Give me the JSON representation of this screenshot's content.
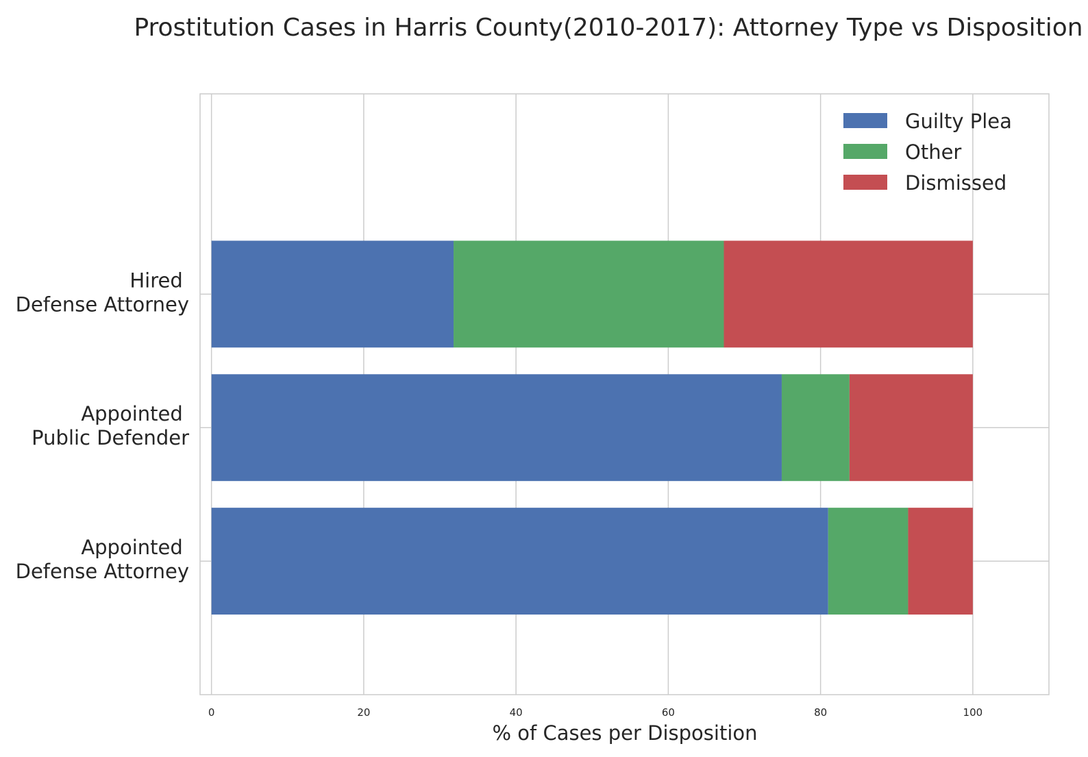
{
  "chart_data": {
    "type": "bar",
    "orientation": "horizontal",
    "stacked": true,
    "title": "Prostitution Cases in Harris County(2010-2017): Attorney Type vs Disposition",
    "xlabel": "% of Cases per Disposition",
    "ylabel": "",
    "xlim": [
      -1.5,
      110
    ],
    "xticks": [
      0,
      20,
      40,
      60,
      80,
      100
    ],
    "grid": true,
    "legend_position": "top-right",
    "categories": [
      [
        "Appointed ",
        "Defense Attorney"
      ],
      [
        "Appointed ",
        "Public Defender"
      ],
      [
        "Hired ",
        "Defense Attorney"
      ]
    ],
    "series": [
      {
        "name": "Guilty Plea",
        "color": "#4c72b0",
        "values": [
          81.0,
          74.9,
          31.8
        ]
      },
      {
        "name": "Other",
        "color": "#55a868",
        "values": [
          10.5,
          8.9,
          35.5
        ]
      },
      {
        "name": "Dismissed",
        "color": "#c44e52",
        "values": [
          8.5,
          16.2,
          32.7
        ]
      }
    ]
  }
}
